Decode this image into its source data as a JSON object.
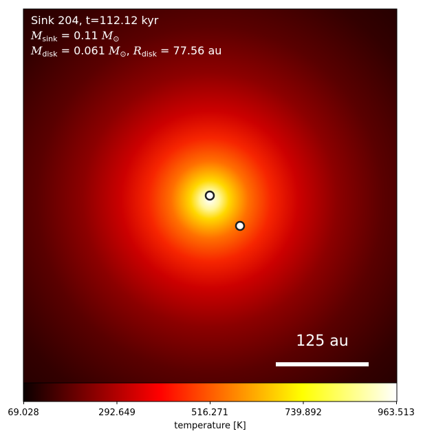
{
  "panel": {
    "sink_line": "Sink 204, t=112.12 kyr",
    "msink_symbol": "M",
    "msink_sub": "sink",
    "msink_value": " = 0.11 ",
    "msun_symbol": "M",
    "msun_sub": "⊙",
    "mdisk_symbol": "M",
    "mdisk_sub": "disk",
    "mdisk_value": " = 0.061 ",
    "mdisk_msun_symbol": "M",
    "mdisk_msun_sub": "⊙",
    "rdisk_sep": ", ",
    "rdisk_symbol": "R",
    "rdisk_sub": "disk",
    "rdisk_value": " = 77.56 au"
  },
  "scale_bar": {
    "label": "125 au"
  },
  "chart_data": {
    "type": "heatmap",
    "title": "",
    "colormap": "hot",
    "colorbar": {
      "label": "temperature [K]",
      "ticks": [
        "69.028",
        "292.649",
        "516.271",
        "739.892",
        "963.513"
      ],
      "min": 69.028,
      "max": 963.513
    },
    "sinks": [
      {
        "name": "sink-1",
        "x_frac": 0.5,
        "y_frac": 0.497
      },
      {
        "name": "sink-2",
        "x_frac": 0.578,
        "y_frac": 0.579
      }
    ],
    "colors": {
      "hot_0": "#0b0000",
      "hot_1": "#e60000",
      "hot_2": "#ffff00",
      "hot_3": "#ffffff",
      "marker_edge": "#1e1e1e"
    }
  }
}
